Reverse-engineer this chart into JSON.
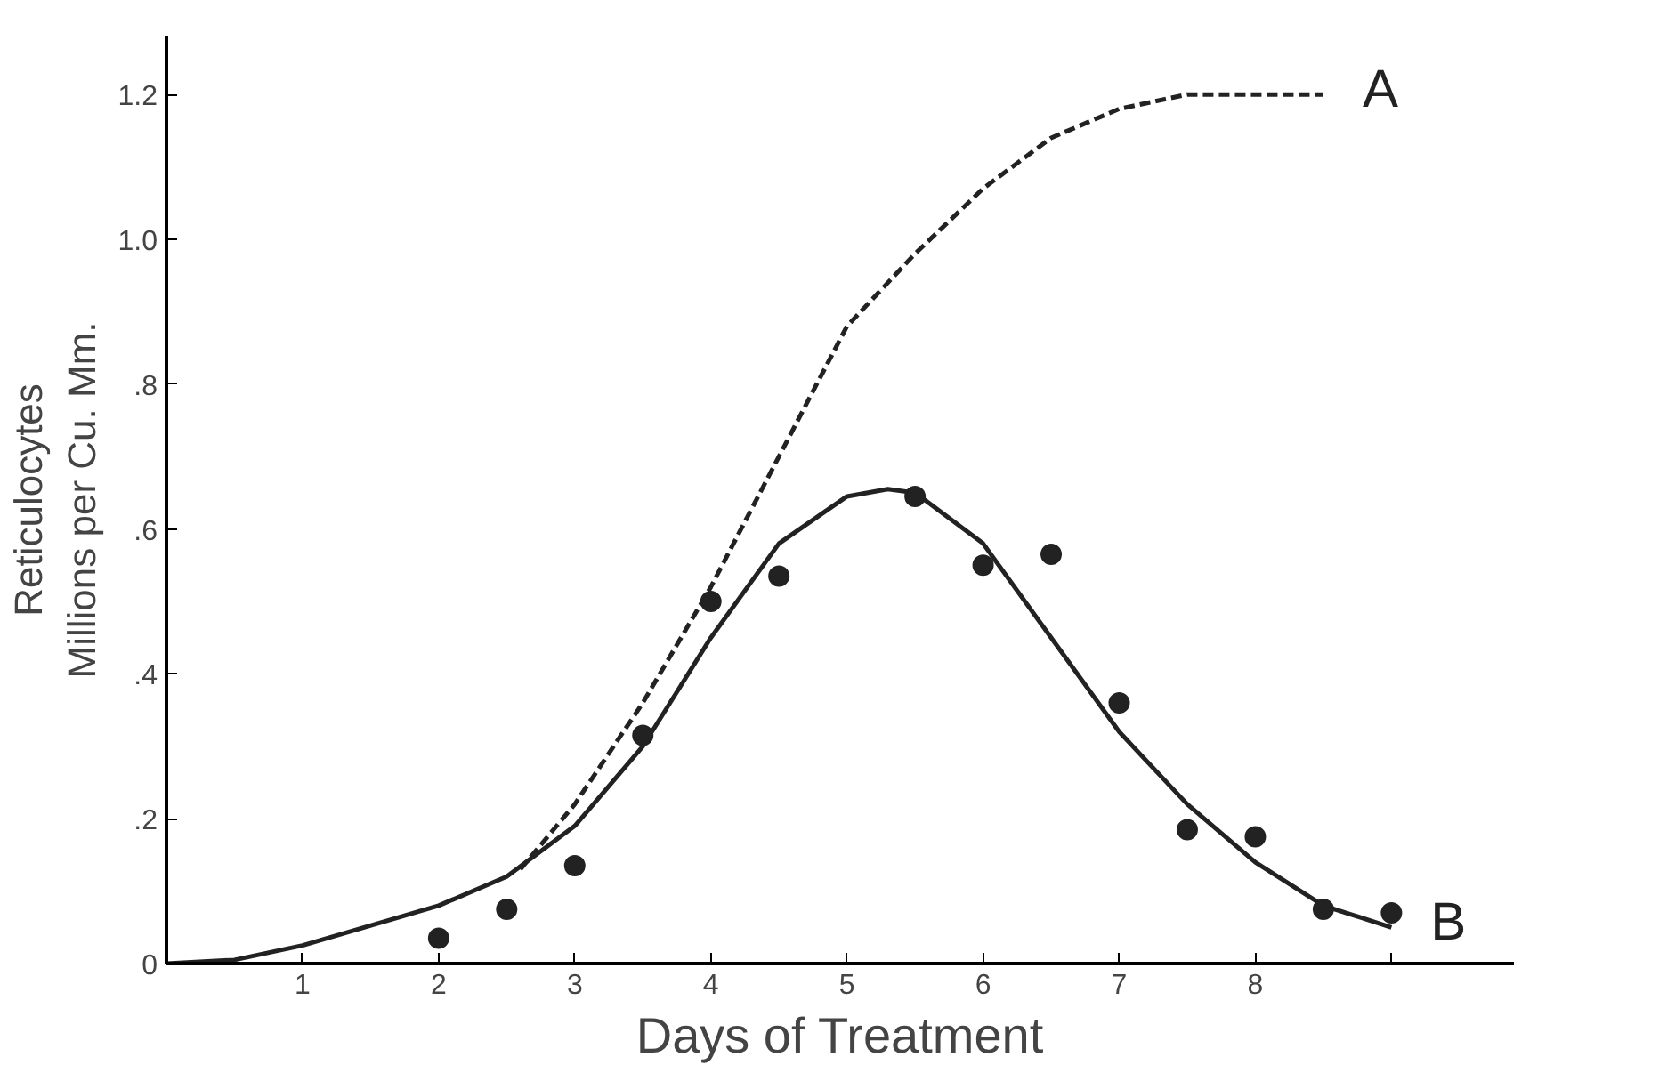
{
  "chart_data": {
    "type": "line",
    "xlabel": "Days of Treatment",
    "ylabel": "Reticulocytes\nMillions per Cu. Mm.",
    "xlim": [
      0,
      9.9
    ],
    "ylim": [
      0,
      1.28
    ],
    "xticks": [
      1,
      2,
      3,
      4,
      5,
      6,
      7,
      8,
      {
        "value": 9,
        "label": null
      }
    ],
    "yticks": [
      0,
      {
        "value": 0.2,
        "label": ".2"
      },
      {
        "value": 0.4,
        "label": ".4"
      },
      {
        "value": 0.6,
        "label": ".6"
      },
      {
        "value": 0.8,
        "label": ".8"
      },
      {
        "value": 1.0,
        "label": "1.0"
      },
      {
        "value": 1.2,
        "label": "1.2"
      }
    ],
    "grid": false,
    "series": [
      {
        "name": "A",
        "line_style": "dashed",
        "color": "#222222",
        "x": [
          2.6,
          3,
          3.5,
          4,
          4.5,
          5,
          5.5,
          6,
          6.5,
          7,
          7.5,
          8,
          8.5
        ],
        "values": [
          0.13,
          0.22,
          0.36,
          0.52,
          0.7,
          0.88,
          0.98,
          1.07,
          1.14,
          1.18,
          1.2,
          1.2,
          1.2
        ]
      },
      {
        "name": "B",
        "line_style": "solid",
        "color": "#222222",
        "x": [
          0,
          0.5,
          1,
          2,
          2.5,
          3,
          3.5,
          4,
          4.5,
          5,
          5.3,
          5.5,
          6,
          6.5,
          7,
          7.5,
          8,
          8.5,
          9
        ],
        "values": [
          0,
          0.005,
          0.025,
          0.08,
          0.12,
          0.19,
          0.3,
          0.45,
          0.58,
          0.645,
          0.655,
          0.65,
          0.58,
          0.45,
          0.32,
          0.22,
          0.14,
          0.08,
          0.05
        ]
      },
      {
        "type": "scatter",
        "marker": "circle",
        "color": "#222222",
        "x": [
          2,
          2.5,
          3,
          3.5,
          4,
          4.5,
          5.5,
          6,
          6.5,
          7,
          7.5,
          8,
          8.5,
          9
        ],
        "values": [
          0.035,
          0.075,
          0.135,
          0.315,
          0.5,
          0.535,
          0.645,
          0.55,
          0.565,
          0.36,
          0.185,
          0.175,
          0.075,
          0.07
        ]
      }
    ]
  }
}
